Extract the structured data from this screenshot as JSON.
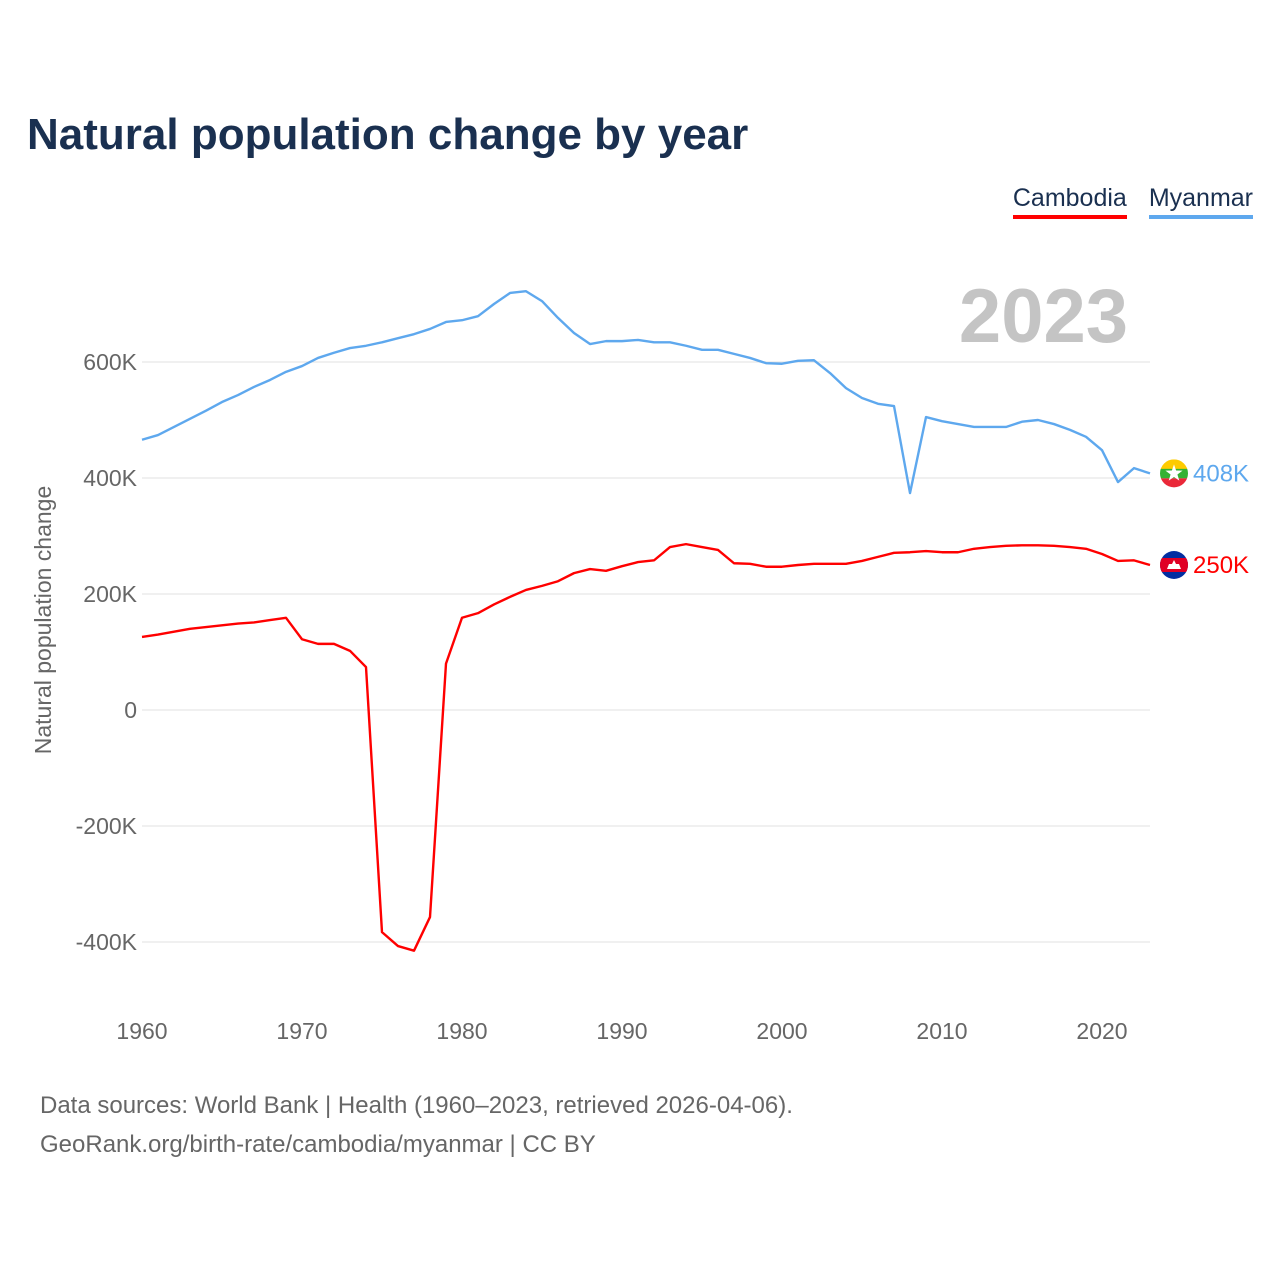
{
  "chart_data": {
    "type": "line",
    "title": "Natural population change by year",
    "ylabel": "Natural population change",
    "xlabel": "",
    "year_label": "2023",
    "xlim": [
      1960,
      2023
    ],
    "ylim": [
      -500,
      700
    ],
    "x_ticks": [
      1960,
      1970,
      1980,
      1990,
      2000,
      2010,
      2020
    ],
    "y_ticks": [
      -400,
      -200,
      0,
      200,
      400,
      600
    ],
    "y_tick_labels": [
      "-400K",
      "-200K",
      "0",
      "200K",
      "400K",
      "600K"
    ],
    "grid": true,
    "legend_position": "top-right",
    "units": "thousands",
    "x": [
      1960,
      1961,
      1962,
      1963,
      1964,
      1965,
      1966,
      1967,
      1968,
      1969,
      1970,
      1971,
      1972,
      1973,
      1974,
      1975,
      1976,
      1977,
      1978,
      1979,
      1980,
      1981,
      1982,
      1983,
      1984,
      1985,
      1986,
      1987,
      1988,
      1989,
      1990,
      1991,
      1992,
      1993,
      1994,
      1995,
      1996,
      1997,
      1998,
      1999,
      2000,
      2001,
      2002,
      2003,
      2004,
      2005,
      2006,
      2007,
      2008,
      2009,
      2010,
      2011,
      2012,
      2013,
      2014,
      2015,
      2016,
      2017,
      2018,
      2019,
      2020,
      2021,
      2022,
      2023
    ],
    "series": [
      {
        "name": "Cambodia",
        "color": "#ff0000",
        "end_label": "250K",
        "flag": "cambodia-flag",
        "values": [
          126,
          130,
          135,
          140,
          143,
          146,
          149,
          151,
          155,
          159,
          122,
          114,
          114,
          102,
          74,
          -383,
          -407,
          -415,
          -357,
          80,
          159,
          167,
          182,
          195,
          207,
          214,
          222,
          236,
          243,
          240,
          248,
          255,
          258,
          281,
          286,
          281,
          276,
          253,
          252,
          247,
          247,
          250,
          252,
          252,
          252,
          257,
          264,
          271,
          272,
          274,
          272,
          272,
          278,
          281,
          283,
          284,
          284,
          283,
          281,
          278,
          269,
          257,
          258,
          250
        ]
      },
      {
        "name": "Myanmar",
        "color": "#5ea8ee",
        "end_label": "408K",
        "flag": "myanmar-flag",
        "values": [
          466,
          474,
          488,
          502,
          516,
          531,
          543,
          557,
          569,
          583,
          593,
          607,
          616,
          624,
          628,
          634,
          641,
          648,
          657,
          669,
          672,
          679,
          700,
          719,
          722,
          705,
          676,
          650,
          631,
          636,
          636,
          638,
          634,
          634,
          628,
          621,
          621,
          614,
          607,
          598,
          597,
          602,
          603,
          581,
          555,
          538,
          528,
          524,
          374,
          505,
          498,
          493,
          488,
          488,
          488,
          497,
          500,
          493,
          483,
          471,
          448,
          393,
          417,
          408
        ]
      }
    ]
  },
  "footer": {
    "line1": "Data sources: World Bank | Health (1960–2023, retrieved 2026-04-06).",
    "line2": "GeoRank.org/birth-rate/cambodia/myanmar | CC BY"
  }
}
